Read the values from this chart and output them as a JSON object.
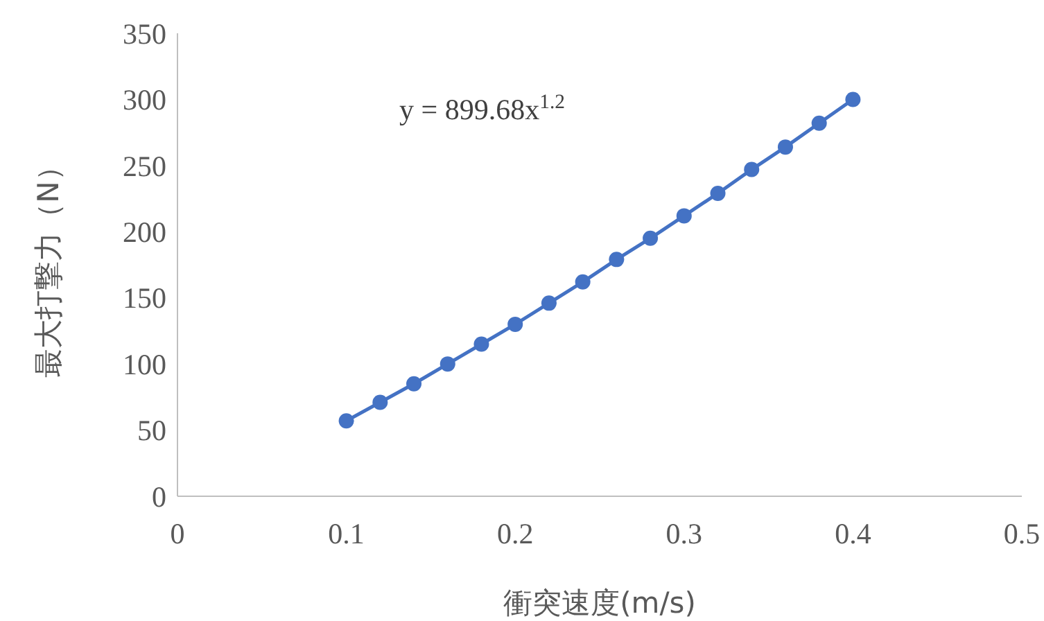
{
  "chart_data": {
    "type": "line",
    "xlabel": "衝突速度(m/s)",
    "ylabel": "最大打撃力（N）",
    "annotations": [
      "y = 899.68x$^{1.2}$"
    ],
    "x": [
      0.1,
      0.12,
      0.14,
      0.16,
      0.18,
      0.2,
      0.22,
      0.24,
      0.26,
      0.28,
      0.3,
      0.32,
      0.34,
      0.36,
      0.38,
      0.4
    ],
    "series": [
      {
        "color": "#4472c4",
        "values": [
          57,
          71,
          85,
          100,
          115,
          130,
          146,
          162,
          179,
          195,
          212,
          229,
          247,
          264,
          282,
          300
        ]
      }
    ],
    "xlim": [
      0,
      0.5
    ],
    "xticks": [
      0,
      0.1,
      0.2,
      0.3,
      0.4,
      0.5
    ],
    "ylim": [
      0,
      350
    ],
    "yticks": [
      0,
      50,
      100,
      150,
      200,
      250,
      300,
      350
    ],
    "marker": "circle",
    "line_style": "solid"
  }
}
